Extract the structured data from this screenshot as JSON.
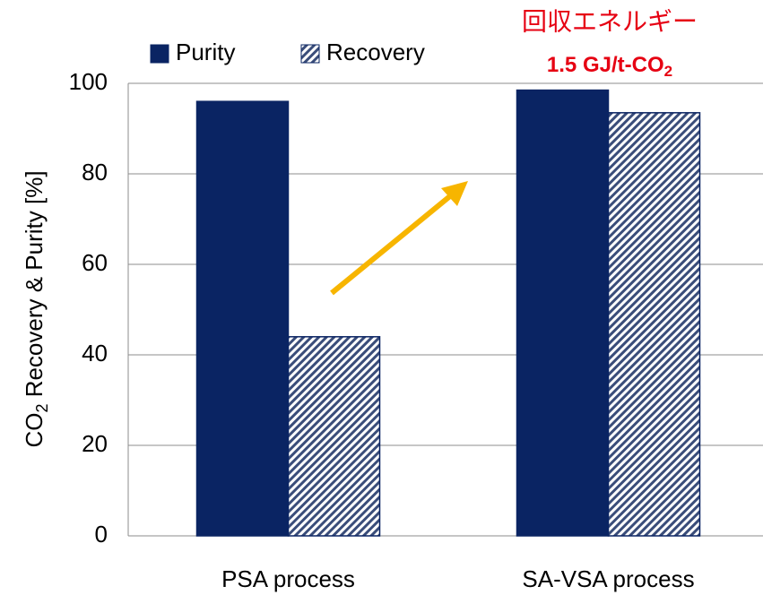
{
  "chart_data": {
    "type": "bar",
    "categories": [
      "PSA process",
      "SA-VSA process"
    ],
    "series": [
      {
        "name": "Purity",
        "color": "#0a2463",
        "pattern": "solid",
        "values": [
          96,
          98.5
        ]
      },
      {
        "name": "Recovery",
        "color": "#3a4d7a",
        "pattern": "hatch",
        "values": [
          44,
          93.5
        ]
      }
    ],
    "ylabel": [
      "CO",
      "2",
      " Recovery & Purity [%]"
    ],
    "annotation": [
      "回収エネルギー",
      "1.5 GJ/t-CO",
      "2"
    ],
    "ylim": [
      0,
      100
    ],
    "yticks": [
      0,
      20,
      40,
      60,
      80,
      100
    ],
    "grid": true,
    "legend": "top"
  }
}
